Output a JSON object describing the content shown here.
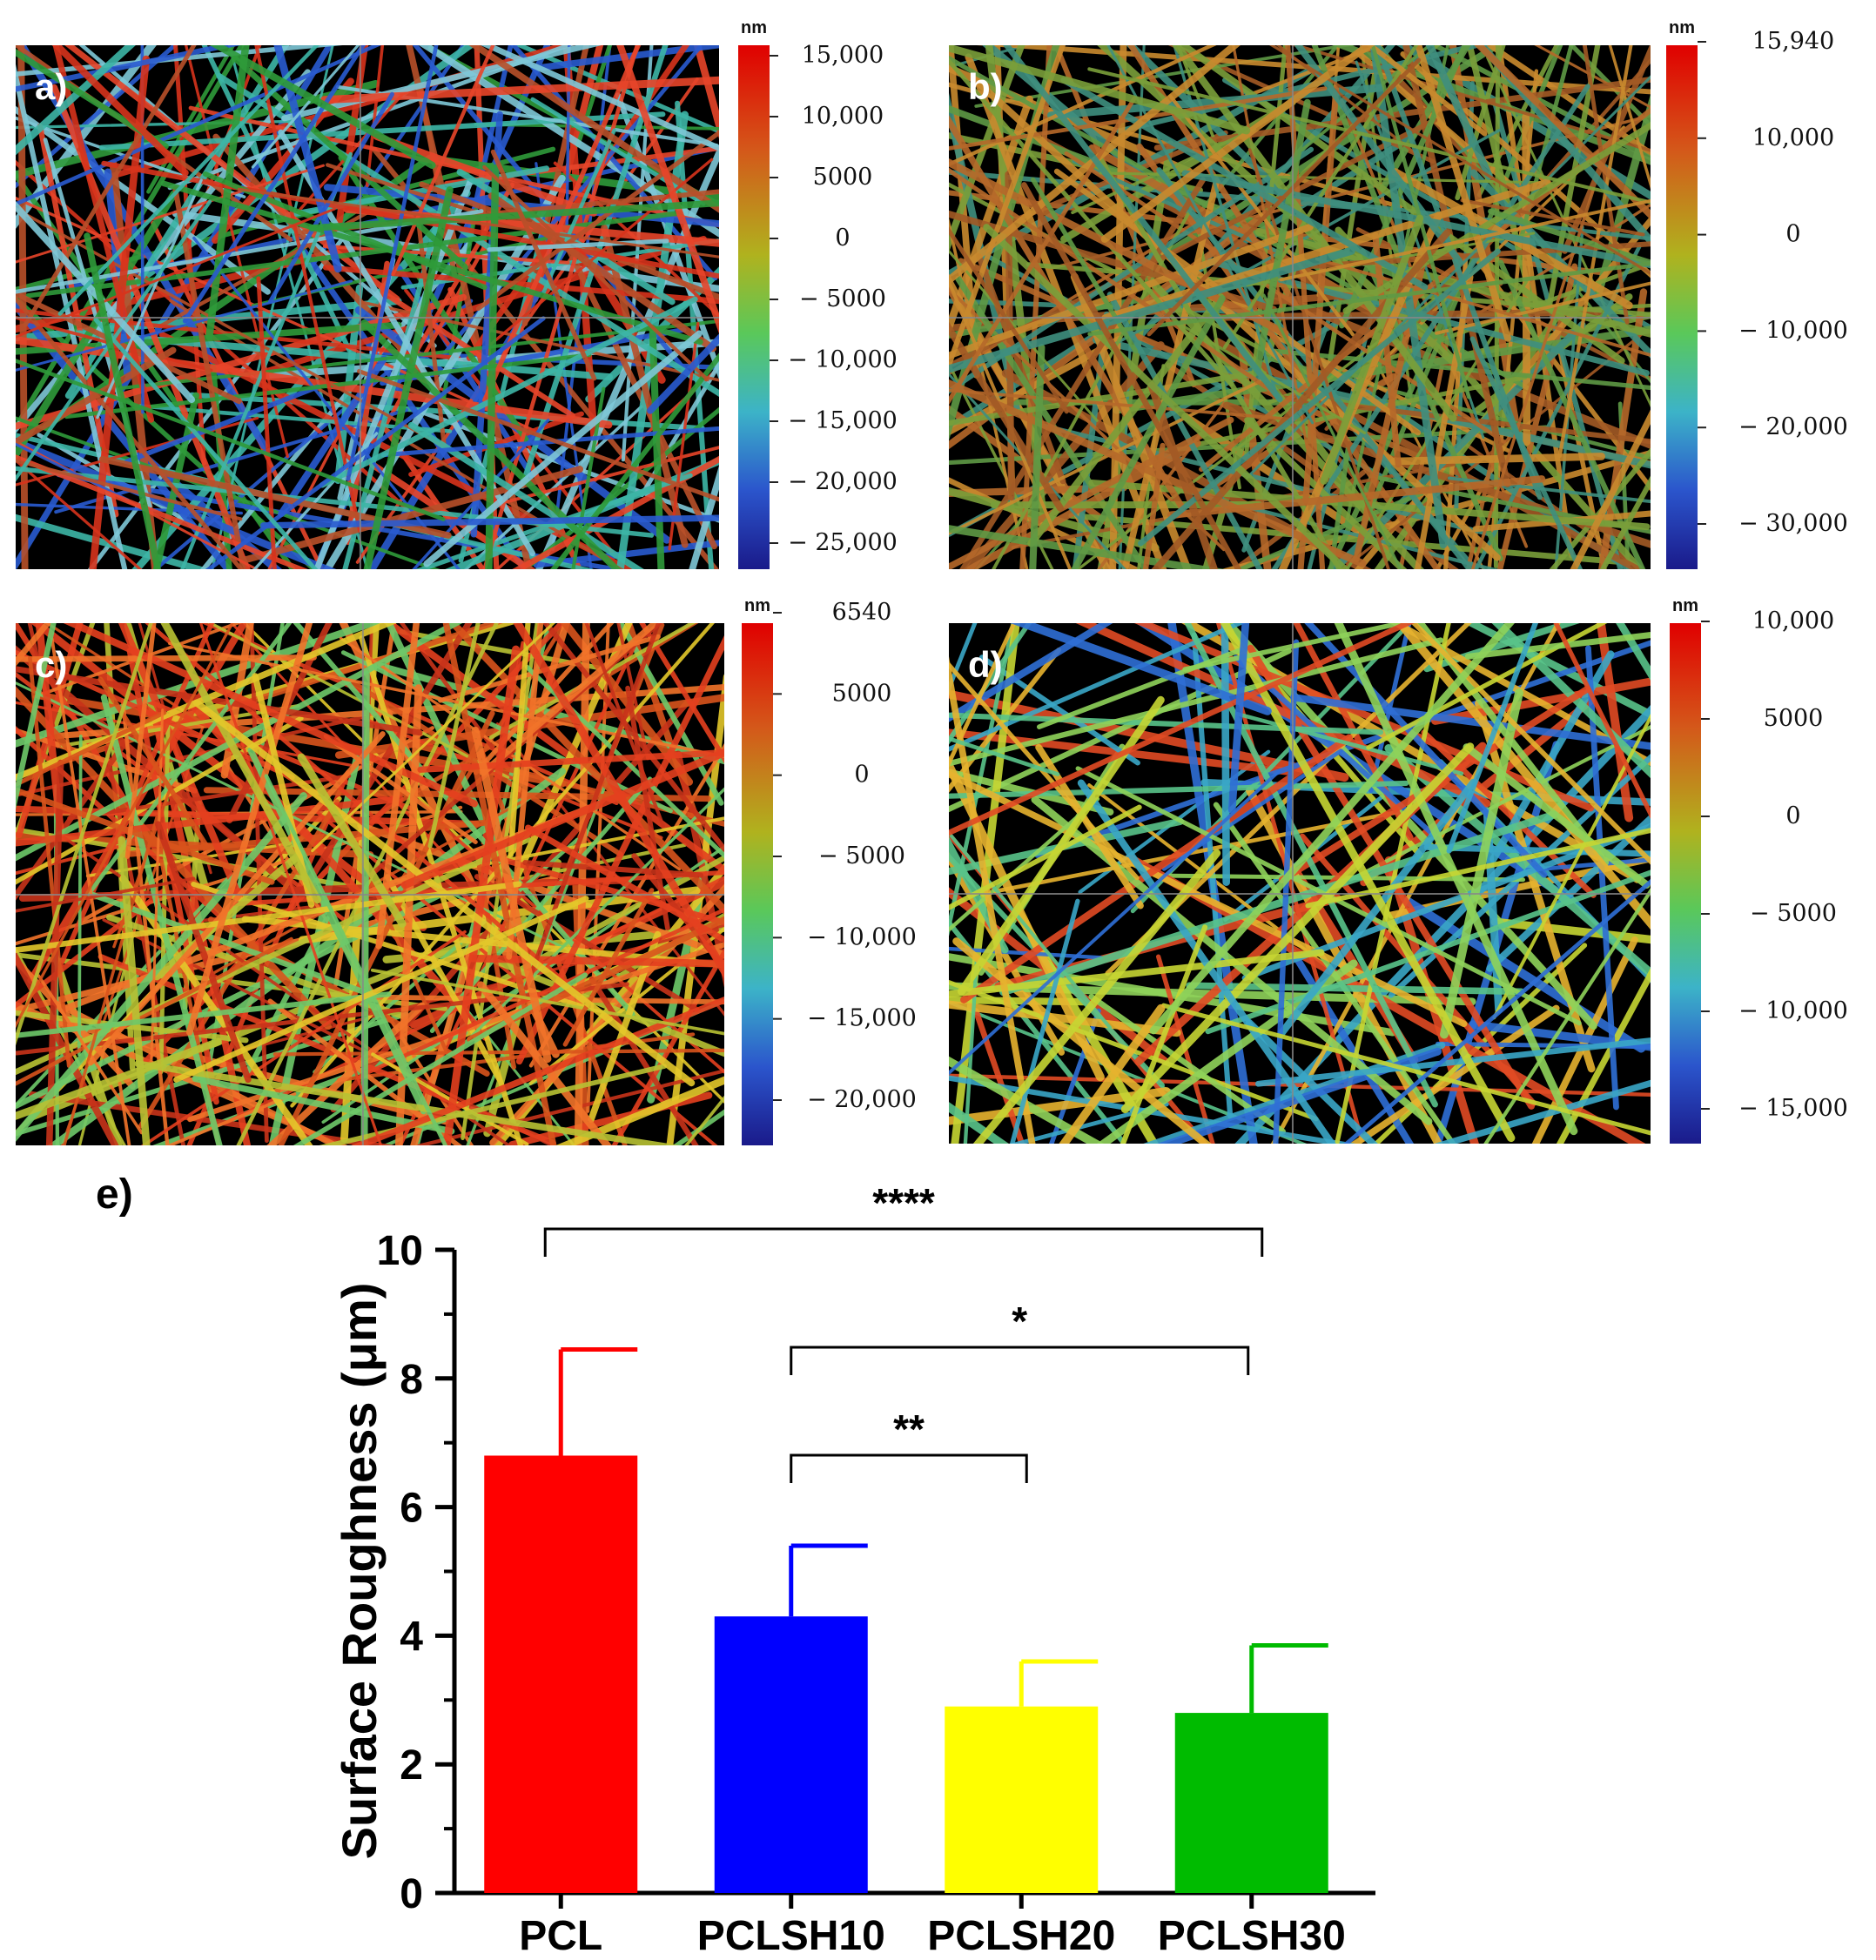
{
  "panels": [
    {
      "letter": "a)",
      "unit": "nm",
      "ticks": [
        "15,000",
        "10,000",
        "5000",
        "0",
        "− 5000",
        "− 10,000",
        "− 15,000",
        "− 20,000",
        "− 25,000"
      ],
      "palette": [
        "#d8341c",
        "#e8452a",
        "#2f9b3a",
        "#3db6a7",
        "#2a5bd1",
        "#7fc8d8",
        "#b8502a"
      ]
    },
    {
      "letter": "b)",
      "unit": "nm",
      "ticks": [
        "15,940",
        "10,000",
        "0",
        "− 10,000",
        "− 20,000",
        "− 30,000"
      ],
      "palette": [
        "#b6692a",
        "#c98a2e",
        "#5f9a45",
        "#3f8f7f",
        "#a35a25",
        "#7a9f3a"
      ]
    },
    {
      "letter": "c)",
      "unit": "nm",
      "ticks": [
        "6540",
        "5000",
        "0",
        "− 5000",
        "− 10,000",
        "− 15,000",
        "− 20,000"
      ],
      "palette": [
        "#e5401f",
        "#d9541c",
        "#f2742a",
        "#b8c234",
        "#6ec96a",
        "#e4c82b",
        "#c8331a"
      ]
    },
    {
      "letter": "d)",
      "unit": "nm",
      "ticks": [
        "10,000",
        "5000",
        "0",
        "− 5000",
        "− 10,000",
        "− 15,000"
      ],
      "palette": [
        "#c7d633",
        "#59c48a",
        "#3aa7c7",
        "#e24b24",
        "#2f6fd6",
        "#e7b32f",
        "#8fd35a"
      ]
    }
  ],
  "chart_data": {
    "type": "bar",
    "panel_label": "e)",
    "categories": [
      "PCL",
      "PCLSH10",
      "PCLSH20",
      "PCLSH30"
    ],
    "values": [
      6.8,
      4.3,
      2.9,
      2.8
    ],
    "errors": [
      1.65,
      1.1,
      0.7,
      1.05
    ],
    "colors": [
      "#ff0000",
      "#0000ff",
      "#ffff00",
      "#00bb00"
    ],
    "ylabel": "Surface Roughness (μm)",
    "xlabel": "",
    "ylim": [
      0,
      10
    ],
    "yticks": [
      0,
      2,
      4,
      6,
      8,
      10
    ],
    "grid": false,
    "significance": [
      {
        "from": 0,
        "to": 3,
        "label": "****"
      },
      {
        "from": 1,
        "to": 3,
        "label": "*"
      },
      {
        "from": 1,
        "to": 2,
        "label": "**"
      }
    ]
  }
}
